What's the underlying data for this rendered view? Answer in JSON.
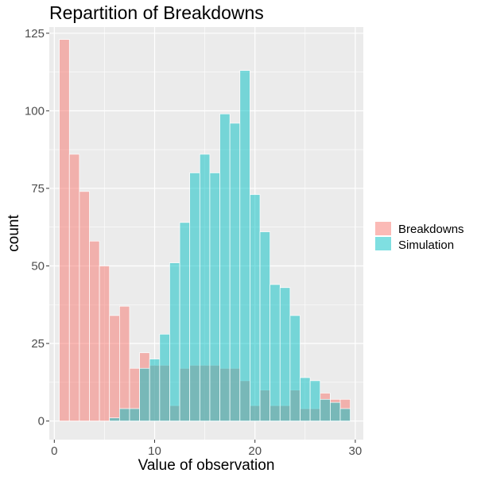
{
  "chart_data": {
    "type": "bar",
    "title": "Repartition of Breakdowns",
    "xlabel": "Value of observation",
    "ylabel": "count",
    "xlim": [
      -0.5,
      30.8
    ],
    "ylim": [
      -6,
      127
    ],
    "x_ticks": [
      0,
      10,
      20,
      30
    ],
    "y_ticks": [
      0,
      25,
      50,
      75,
      100,
      125
    ],
    "bin_width": 1,
    "grid": true,
    "legend_position": "right",
    "x": [
      1,
      2,
      3,
      4,
      5,
      6,
      7,
      8,
      9,
      10,
      11,
      12,
      13,
      14,
      15,
      16,
      17,
      18,
      19,
      20,
      21,
      22,
      23,
      24,
      25,
      26,
      27,
      28,
      29
    ],
    "series": [
      {
        "name": "Breakdowns",
        "color": "#F8766D",
        "values": [
          123,
          86,
          74,
          58,
          50,
          34,
          37,
          17,
          22,
          18,
          18,
          5,
          17,
          18,
          18,
          18,
          17,
          17,
          13,
          5,
          10,
          5,
          5,
          10,
          4,
          4,
          9,
          7,
          7
        ]
      },
      {
        "name": "Simulation",
        "color": "#00BFC4",
        "values": [
          0,
          0,
          0,
          0,
          0,
          1,
          4,
          4,
          17,
          20,
          28,
          51,
          64,
          80,
          86,
          80,
          99,
          96,
          113,
          73,
          61,
          44,
          43,
          34,
          14,
          13,
          7,
          6,
          4
        ]
      }
    ]
  }
}
